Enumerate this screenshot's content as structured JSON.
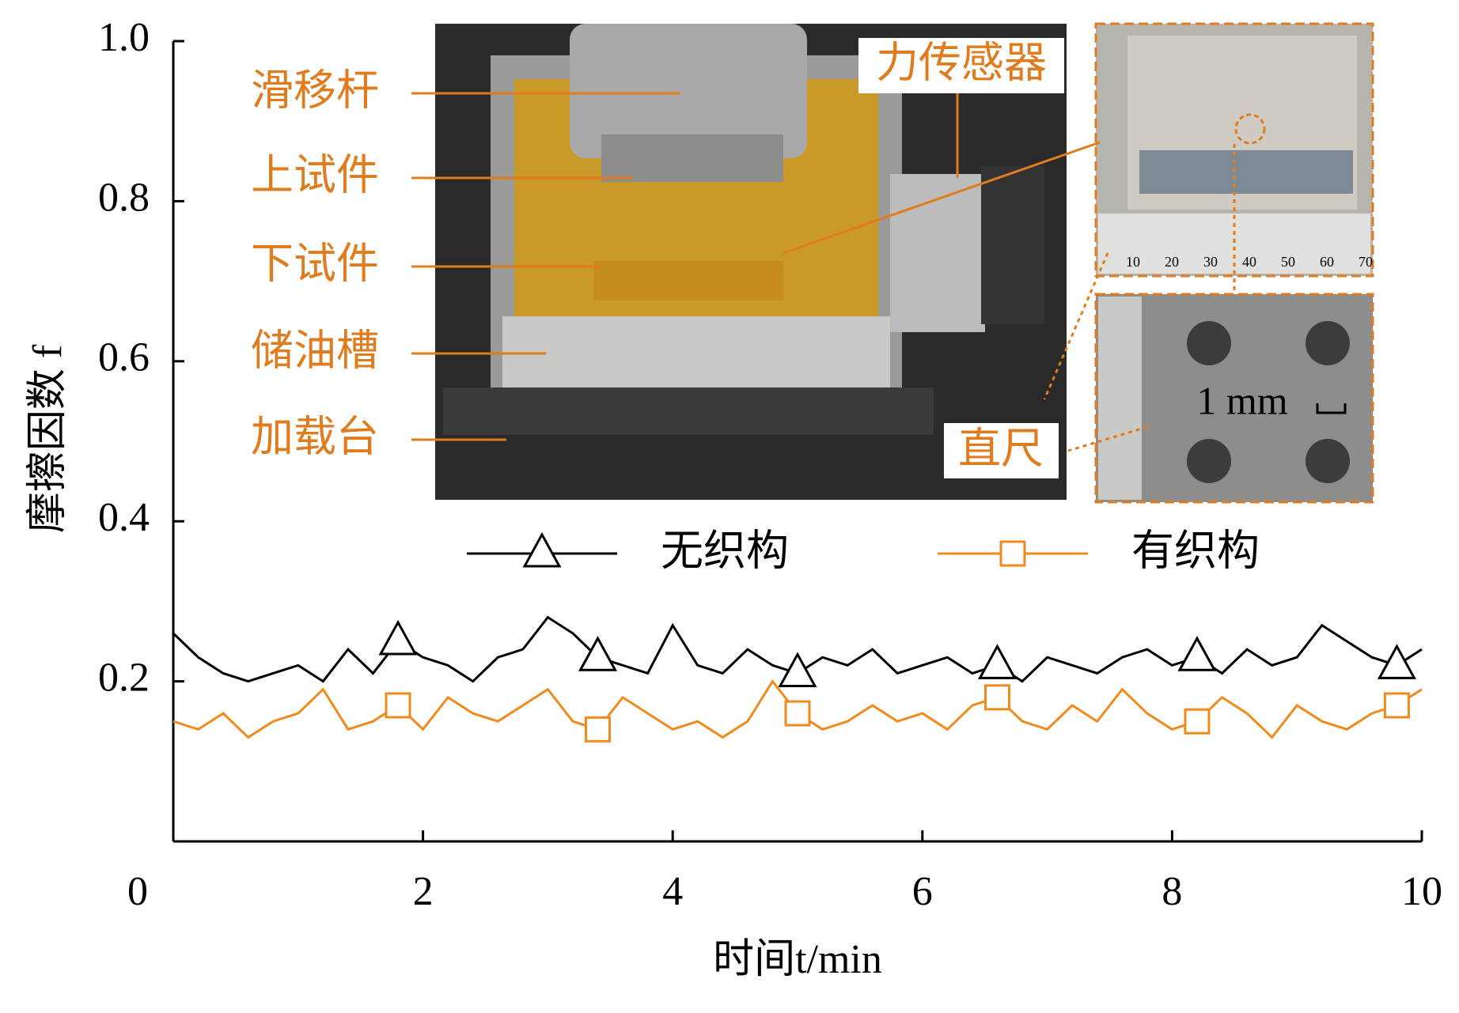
{
  "chart_data": {
    "type": "line",
    "x_label": "时间t/min",
    "y_label": "摩擦因数 f",
    "x": [
      0,
      0.2,
      0.4,
      0.6,
      0.8,
      1,
      1.2,
      1.4,
      1.6,
      1.8,
      2,
      2.2,
      2.4,
      2.6,
      2.8,
      3,
      3.2,
      3.4,
      3.6,
      3.8,
      4,
      4.2,
      4.4,
      4.6,
      4.8,
      5,
      5.2,
      5.4,
      5.6,
      5.8,
      6,
      6.2,
      6.4,
      6.6,
      6.8,
      7,
      7.2,
      7.4,
      7.6,
      7.8,
      8,
      8.2,
      8.4,
      8.6,
      8.8,
      9,
      9.2,
      9.4,
      9.6,
      9.8,
      10
    ],
    "series": [
      {
        "name": "无织构",
        "color": "#000000",
        "marker": "triangle",
        "values": [
          0.26,
          0.23,
          0.21,
          0.2,
          0.21,
          0.22,
          0.2,
          0.24,
          0.21,
          0.25,
          0.23,
          0.22,
          0.2,
          0.23,
          0.24,
          0.28,
          0.26,
          0.23,
          0.22,
          0.21,
          0.27,
          0.22,
          0.21,
          0.24,
          0.22,
          0.21,
          0.23,
          0.22,
          0.24,
          0.21,
          0.22,
          0.23,
          0.21,
          0.22,
          0.2,
          0.23,
          0.22,
          0.21,
          0.23,
          0.24,
          0.22,
          0.23,
          0.21,
          0.24,
          0.22,
          0.23,
          0.27,
          0.25,
          0.23,
          0.22,
          0.24
        ]
      },
      {
        "name": "有织构",
        "color": "#f08a1c",
        "marker": "square",
        "values": [
          0.15,
          0.14,
          0.16,
          0.13,
          0.15,
          0.16,
          0.19,
          0.14,
          0.15,
          0.17,
          0.14,
          0.18,
          0.16,
          0.15,
          0.17,
          0.19,
          0.15,
          0.14,
          0.18,
          0.16,
          0.14,
          0.15,
          0.13,
          0.15,
          0.2,
          0.16,
          0.14,
          0.15,
          0.17,
          0.15,
          0.16,
          0.14,
          0.17,
          0.18,
          0.15,
          0.14,
          0.17,
          0.15,
          0.19,
          0.16,
          0.14,
          0.15,
          0.18,
          0.16,
          0.13,
          0.17,
          0.15,
          0.14,
          0.16,
          0.17,
          0.19
        ]
      }
    ],
    "xlim": [
      0,
      10
    ],
    "xticks": [
      0,
      2,
      4,
      6,
      8,
      10
    ],
    "ylim": [
      0,
      1
    ],
    "yticks": [
      0.2,
      0.4,
      0.6,
      0.8,
      {
        "value": 1,
        "label": "1.0"
      }
    ],
    "annotations": {
      "photo_labels": [
        "滑移杆",
        "上试件",
        "下试件",
        "储油槽",
        "加载台"
      ],
      "force_sensor": "力传感器",
      "ruler": "直尺",
      "scale_bar": "1 mm",
      "ruler_ticks": [
        10,
        20,
        30,
        40,
        50,
        60,
        70
      ]
    }
  }
}
